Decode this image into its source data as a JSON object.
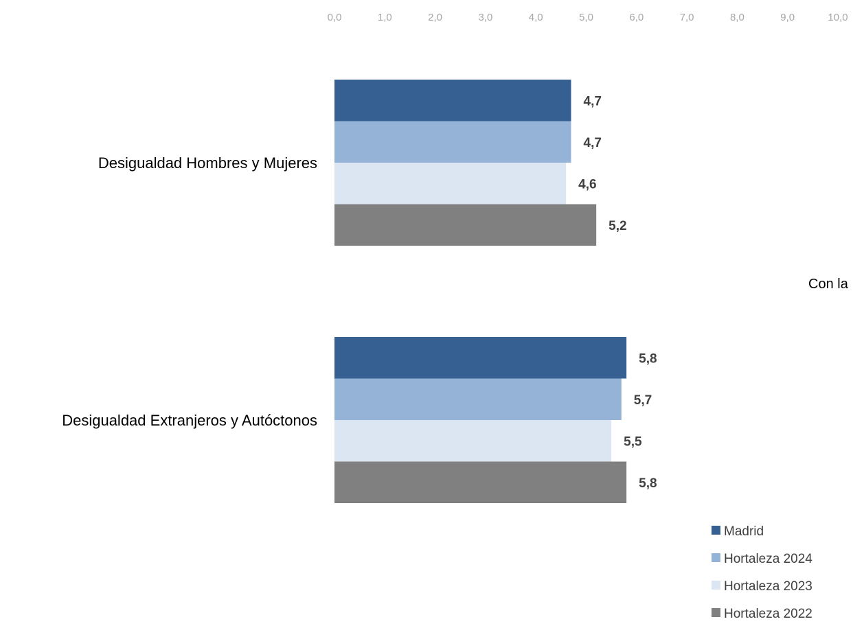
{
  "chart_data": {
    "type": "bar",
    "orientation": "horizontal",
    "categories": [
      "Desigualdad Hombres y Mujeres",
      "Desigualdad Extranjeros y Autóctonos"
    ],
    "series": [
      {
        "name": "Madrid",
        "color": "#376092",
        "values": [
          4.7,
          5.8
        ],
        "labels": [
          "4,7",
          "5,8"
        ]
      },
      {
        "name": "Hortaleza 2024",
        "color": "#95b3d7",
        "values": [
          4.7,
          5.7
        ],
        "labels": [
          "4,7",
          "5,7"
        ]
      },
      {
        "name": "Hortaleza 2023",
        "color": "#dce6f2",
        "values": [
          4.6,
          5.5
        ],
        "labels": [
          "4,6",
          "5,5"
        ]
      },
      {
        "name": "Hortaleza 2022",
        "color": "#808080",
        "values": [
          5.2,
          5.8
        ],
        "labels": [
          "5,2",
          "5,8"
        ]
      }
    ],
    "xlim": [
      0,
      10
    ],
    "ticks": [
      "0,0",
      "1,0",
      "2,0",
      "3,0",
      "4,0",
      "5,0",
      "6,0",
      "7,0",
      "8,0",
      "9,0",
      "10,0"
    ],
    "axis_position": "top",
    "grid": false,
    "legend_position": "bottom-right"
  },
  "side_text": "Con la"
}
